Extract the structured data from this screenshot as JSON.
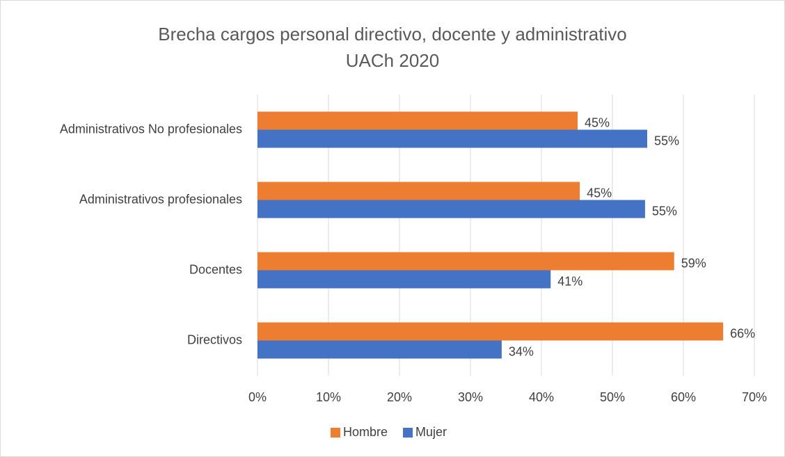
{
  "chart_data": {
    "type": "barh",
    "title": "Brecha cargos personal directivo, docente y administrativo UACh 2020",
    "categories": [
      "Directivos",
      "Docentes",
      "Administrativos profesionales",
      "Administrativos No profesionales"
    ],
    "series": [
      {
        "name": "Hombre",
        "color": "#ed7d31",
        "values": [
          65.6,
          58.7,
          45.4,
          45.1
        ],
        "value_labels": [
          "66%",
          "59%",
          "45%",
          "45%"
        ]
      },
      {
        "name": "Mujer",
        "color": "#4472c4",
        "values": [
          34.4,
          41.3,
          54.6,
          54.9
        ],
        "value_labels": [
          "34%",
          "41%",
          "55%",
          "55%"
        ]
      }
    ],
    "xlim": [
      0,
      70
    ],
    "xticks": [
      {
        "value": 0,
        "label": "0%"
      },
      {
        "value": 10,
        "label": "10%"
      },
      {
        "value": 20,
        "label": "20%"
      },
      {
        "value": 30,
        "label": "30%"
      },
      {
        "value": 40,
        "label": "40%"
      },
      {
        "value": 50,
        "label": "50%"
      },
      {
        "value": 60,
        "label": "60%"
      },
      {
        "value": 70,
        "label": "70%"
      }
    ],
    "grid": true,
    "legend": "bottom"
  }
}
